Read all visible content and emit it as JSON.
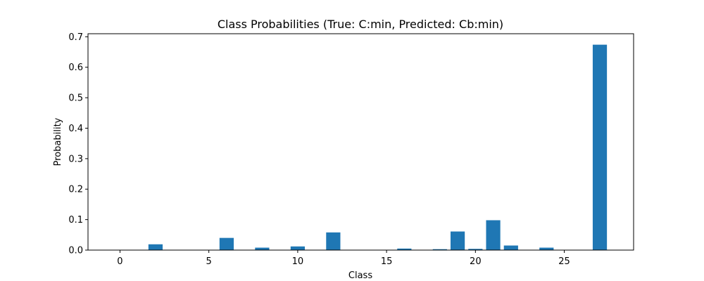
{
  "chart_data": {
    "type": "bar",
    "title": "Class Probabilities (True: C:min, Predicted: Cb:min)",
    "xlabel": "Class",
    "ylabel": "Probability",
    "xlim": [
      -1.8,
      28.9
    ],
    "ylim": [
      0,
      0.71
    ],
    "xticks": [
      0,
      5,
      10,
      15,
      20,
      25
    ],
    "yticks": [
      0.0,
      0.1,
      0.2,
      0.3,
      0.4,
      0.5,
      0.6,
      0.7
    ],
    "ytick_labels": [
      "0.0",
      "0.1",
      "0.2",
      "0.3",
      "0.4",
      "0.5",
      "0.6",
      "0.7"
    ],
    "bar_color": "#1f77b4",
    "grid": false,
    "legend": "none",
    "x": [
      0,
      1,
      2,
      3,
      4,
      5,
      6,
      7,
      8,
      9,
      10,
      11,
      12,
      13,
      14,
      15,
      16,
      17,
      18,
      19,
      20,
      21,
      22,
      23,
      24,
      25,
      26,
      27
    ],
    "values": [
      0.0005,
      0.0005,
      0.019,
      0.0005,
      0.0005,
      0.0005,
      0.04,
      0.0005,
      0.008,
      0.0005,
      0.012,
      0.0005,
      0.058,
      0.0005,
      0.0005,
      0.0005,
      0.005,
      0.0005,
      0.003,
      0.061,
      0.004,
      0.098,
      0.015,
      0.0005,
      0.008,
      0.0005,
      0.0005,
      0.674
    ]
  }
}
